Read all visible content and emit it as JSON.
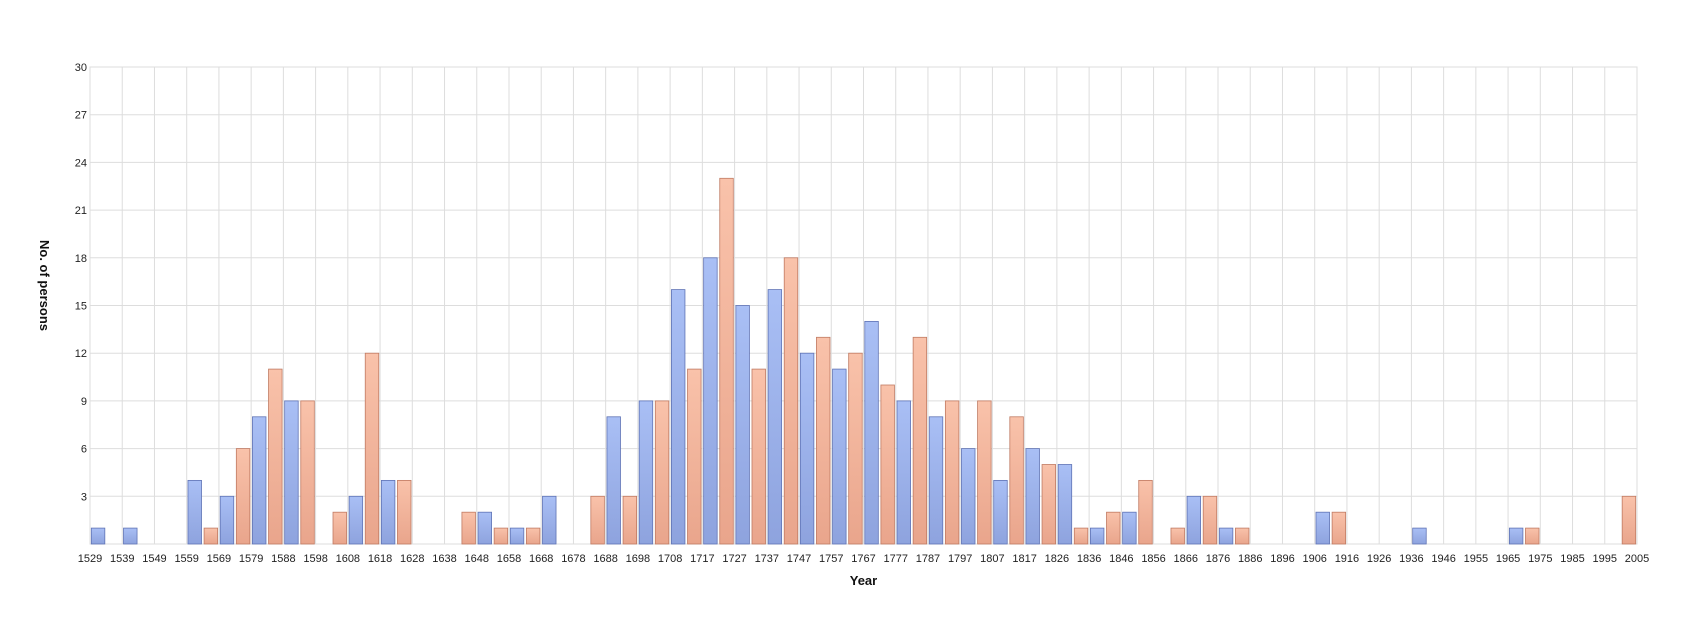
{
  "chart_data": {
    "type": "bar",
    "title": "",
    "xlabel": "Year",
    "ylabel": "No. of persons",
    "ylim": [
      0,
      30
    ],
    "yticks": [
      3,
      6,
      9,
      12,
      15,
      18,
      21,
      24,
      27,
      30
    ],
    "grid": true,
    "legend": "none",
    "x_tick_labels": [
      "1529",
      "1539",
      "1549",
      "1559",
      "1569",
      "1579",
      "1588",
      "1598",
      "1608",
      "1618",
      "1628",
      "1638",
      "1648",
      "1658",
      "1668",
      "1678",
      "1688",
      "1698",
      "1708",
      "1717",
      "1727",
      "1737",
      "1747",
      "1757",
      "1767",
      "1777",
      "1787",
      "1797",
      "1807",
      "1817",
      "1826",
      "1836",
      "1846",
      "1856",
      "1866",
      "1876",
      "1886",
      "1896",
      "1906",
      "1916",
      "1926",
      "1936",
      "1946",
      "1955",
      "1965",
      "1975",
      "1985",
      "1995",
      "2005"
    ],
    "series": [
      {
        "color": "#9fb4ee",
        "values": [
          1,
          1,
          0,
          4,
          3,
          8,
          9,
          0,
          3,
          4,
          0,
          0,
          2,
          1,
          3,
          0,
          8,
          9,
          16,
          18,
          15,
          16,
          12,
          11,
          14,
          9,
          8,
          6,
          4,
          6,
          5,
          1,
          2,
          0,
          3,
          1,
          0,
          0,
          2,
          0,
          0,
          1,
          0,
          0,
          1,
          0,
          0,
          0
        ]
      },
      {
        "color": "#f6b59c",
        "values": [
          0,
          0,
          0,
          1,
          6,
          11,
          9,
          2,
          12,
          4,
          0,
          2,
          1,
          1,
          0,
          3,
          3,
          9,
          11,
          23,
          11,
          18,
          13,
          12,
          10,
          13,
          9,
          9,
          8,
          5,
          1,
          2,
          4,
          1,
          3,
          1,
          0,
          0,
          2,
          0,
          0,
          0,
          0,
          0,
          1,
          0,
          0,
          3
        ]
      }
    ]
  }
}
